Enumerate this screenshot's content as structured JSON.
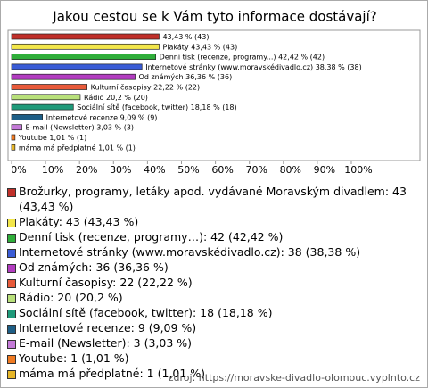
{
  "chart_data": {
    "type": "bar",
    "orientation": "horizontal",
    "title": "Jakou cestou se k Vám tyto informace dostávají?",
    "categories": [
      null,
      "Plakáty",
      "Denní tisk (recenze, programy...)",
      "Internetové stránky (www.moravskédivadlo.cz)",
      "Od známých",
      "Kulturní časopisy",
      "Rádio",
      "Sociální sítě (facebook, twitter)",
      "Internetové recenze",
      "E-mail (Newsletter)",
      "Youtube",
      "máma má předplatné"
    ],
    "values": [
      43.43,
      43.43,
      42.42,
      38.38,
      36.36,
      22.22,
      20.2,
      18.18,
      9.09,
      3.03,
      1.01,
      1.01
    ],
    "value_labels": [
      "43,43 % (43)",
      "43,43 % (43)",
      "42,42 % (42)",
      "38,38 % (38)",
      "36,36 % (36)",
      "22,22 % (22)",
      "20,2 % (20)",
      "18,18 % (18)",
      "9,09 % (9)",
      "3,03 % (3)",
      "1,01 % (1)",
      "1,01 % (1)"
    ],
    "colors": [
      "#c0302a",
      "#f2e64a",
      "#2fae3a",
      "#3a5cd6",
      "#b23cc0",
      "#e85a3a",
      "#b8e07a",
      "#1f9a7a",
      "#1e5e86",
      "#c47ad8",
      "#f07a22",
      "#e6b628"
    ],
    "legend": [
      "Brožurky, programy, letáky apod. vydávané Moravským divadlem: 43 (43,43 %)",
      "Plakáty: 43 (43,43 %)",
      "Denní tisk (recenze, programy…): 42 (42,42 %)",
      "Internetové stránky (www.moravskédivadlo.cz): 38 (38,38 %)",
      "Od známých: 36 (36,36 %)",
      "Kulturní časopisy: 22 (22,22 %)",
      "Rádio: 20 (20,2 %)",
      "Sociální sítě (facebook, twitter): 18 (18,18 %)",
      "Internetové recenze: 9 (9,09 %)",
      "E-mail (Newsletter): 3 (3,03 %)",
      "Youtube: 1 (1,01 %)",
      "máma má předplatné: 1 (1,01 %)"
    ],
    "xlim": [
      0,
      100
    ],
    "xticks": [
      {
        "value": 0,
        "label": "0%"
      },
      {
        "value": 10,
        "label": "10%"
      },
      {
        "value": 20,
        "label": "20%"
      },
      {
        "value": 30,
        "label": "30%"
      },
      {
        "value": 40,
        "label": "40%"
      },
      {
        "value": 50,
        "label": "50%"
      },
      {
        "value": 60,
        "label": "60%"
      },
      {
        "value": 70,
        "label": "70%"
      },
      {
        "value": 80,
        "label": "80%"
      },
      {
        "value": 90,
        "label": "90%"
      },
      {
        "value": 100,
        "label": "100%"
      }
    ],
    "source": "zdroj: https://moravske-divadlo-olomouc.vyplnto.cz"
  }
}
